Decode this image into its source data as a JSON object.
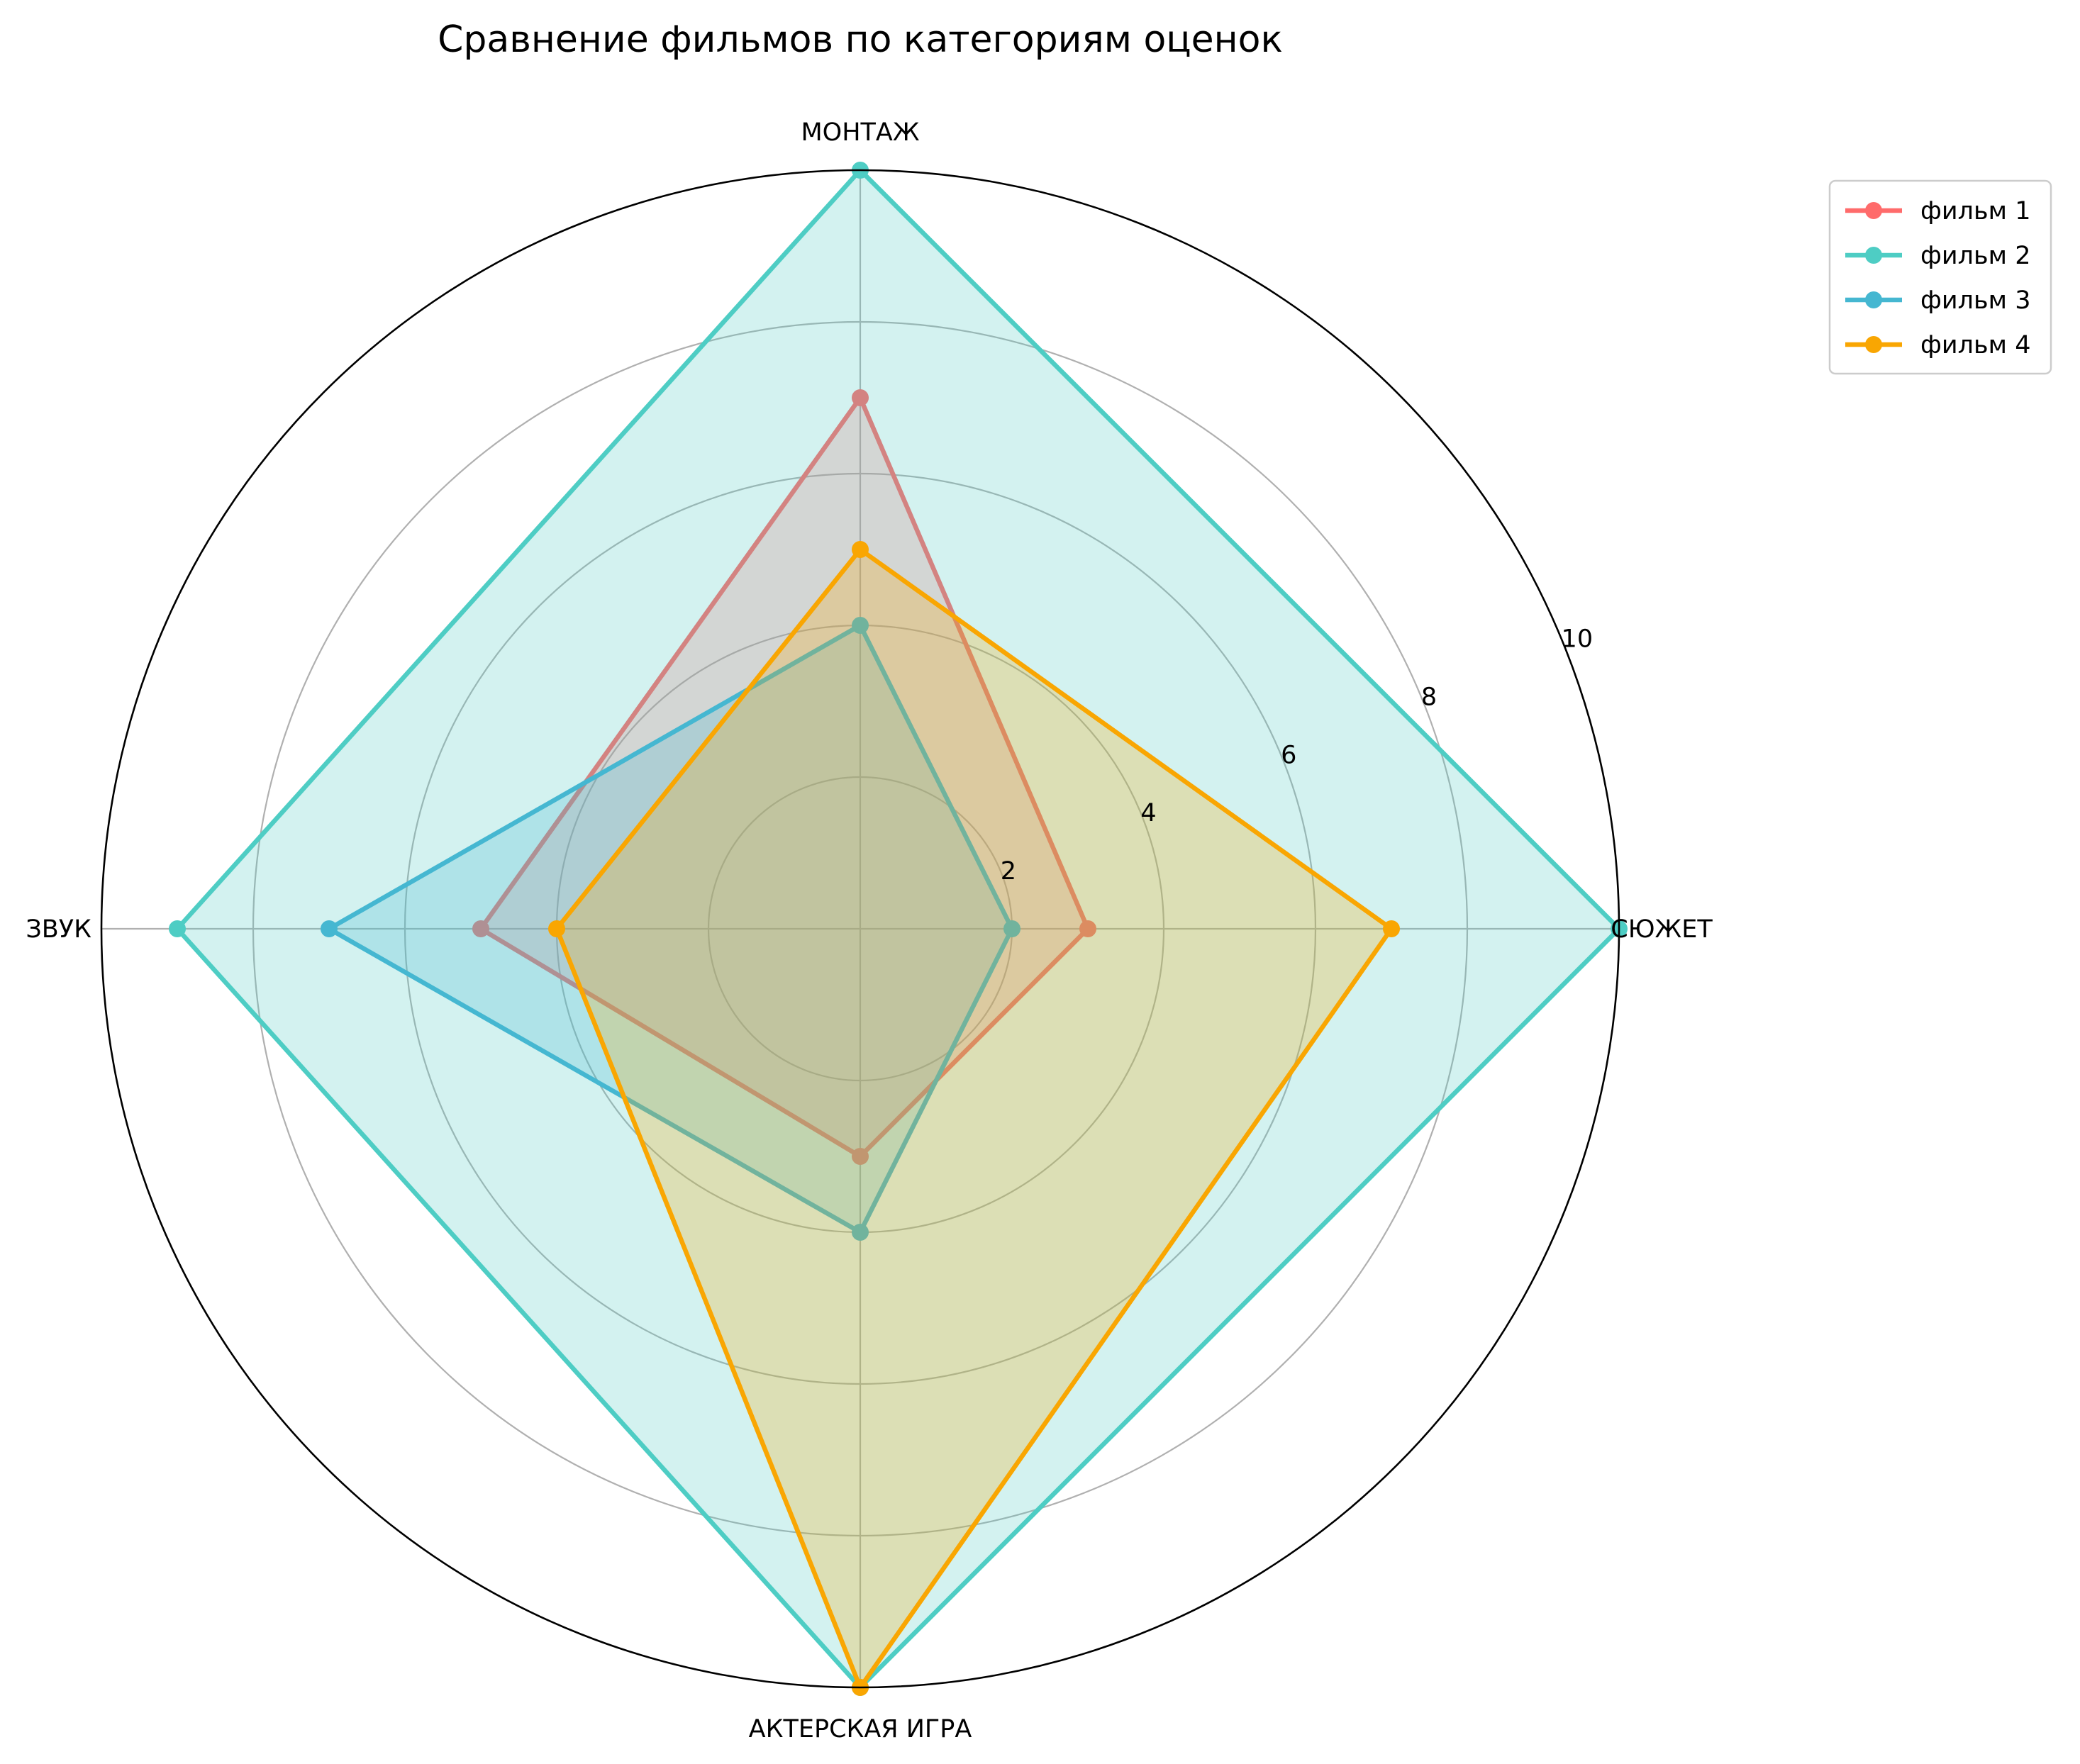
{
  "chart_data": {
    "type": "radar",
    "title": "Сравнение фильмов по категориям оценок",
    "categories": [
      "СЮЖЕТ",
      "МОНТАЖ",
      "ЗВУК",
      "АКТЕРСКАЯ ИГРА"
    ],
    "radial_range": [
      0,
      10
    ],
    "radial_ticks": [
      "2",
      "4",
      "6",
      "8",
      "10"
    ],
    "grid": true,
    "legend_position": "top-right, outside plot",
    "series": [
      {
        "name": "фильм 1",
        "values": [
          3,
          7,
          5,
          3
        ],
        "color": "#ff6b6b"
      },
      {
        "name": "фильм 2",
        "values": [
          10,
          10,
          9,
          10
        ],
        "color": "#4ecdc4"
      },
      {
        "name": "фильм 3",
        "values": [
          2,
          4,
          7,
          4
        ],
        "color": "#45b7d1"
      },
      {
        "name": "фильм 4",
        "values": [
          7,
          5,
          4,
          10
        ],
        "color": "#f9a602"
      }
    ]
  }
}
